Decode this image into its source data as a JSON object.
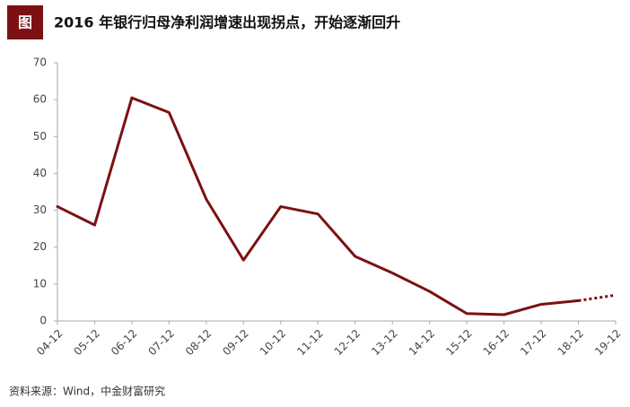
{
  "chart_data": {
    "type": "line",
    "title_badge": "图",
    "title": "2016 年银行归母净利润增速出现拐点，开始逐渐回升",
    "source": "资料来源：Wind，中金财富研究",
    "categories": [
      "04-12",
      "05-12",
      "06-12",
      "07-12",
      "08-12",
      "09-12",
      "10-12",
      "11-12",
      "12-12",
      "13-12",
      "14-12",
      "15-12",
      "16-12",
      "17-12",
      "18-12",
      "19-12"
    ],
    "series": [
      {
        "color": "#7b1113",
        "style": "solid",
        "values": [
          31,
          26,
          60.5,
          56.5,
          33,
          16.5,
          31,
          29,
          17.5,
          13,
          8,
          2,
          1.7,
          4.5,
          5.5,
          null
        ]
      },
      {
        "color": "#7b1113",
        "style": "dotted",
        "values": [
          null,
          null,
          null,
          null,
          null,
          null,
          null,
          null,
          null,
          null,
          null,
          null,
          null,
          null,
          5.5,
          7
        ]
      }
    ],
    "ylim": [
      0,
      70
    ],
    "yticks": [
      0,
      10,
      20,
      30,
      40,
      50,
      60,
      70
    ],
    "grid": false
  }
}
